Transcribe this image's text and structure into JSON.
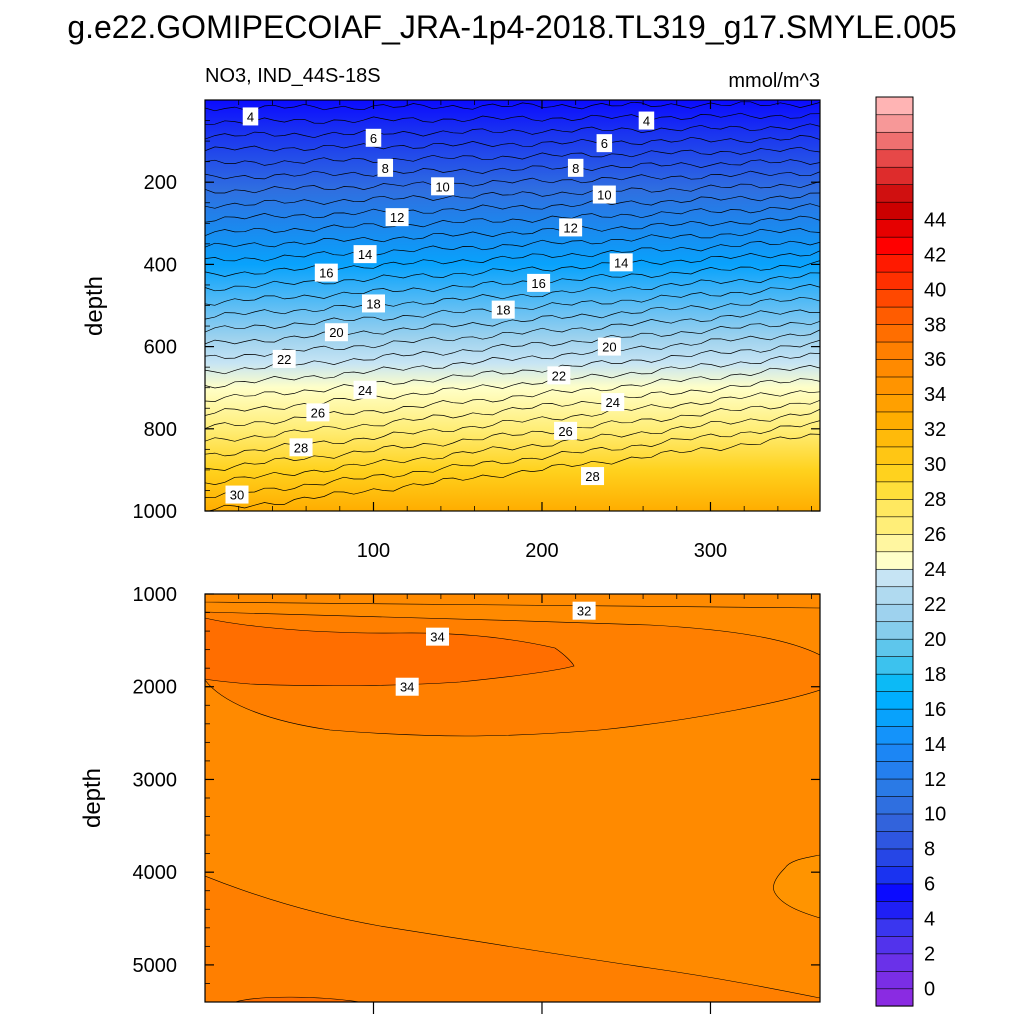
{
  "figure": {
    "main_title": "g.e22.GOMIPECOIAF_JRA-1p4-2018.TL319_g17.SMYLE.005"
  },
  "colors": {
    "frame": "#000000",
    "contour_line": "#000000"
  },
  "chart_data": [
    {
      "id": "upper-panel",
      "type": "contour",
      "title_left": "NO3, IND_44S-18S",
      "title_right": "mmol/m^3",
      "xlabel": "",
      "ylabel": "depth",
      "xlim": [
        0,
        365
      ],
      "ylim": [
        1000,
        0
      ],
      "xticks": [
        100,
        200,
        300
      ],
      "xticklabels": [
        "100",
        "200",
        "300"
      ],
      "yticks": [
        200,
        400,
        600,
        800,
        1000
      ],
      "yticklabels": [
        "200",
        "400",
        "600",
        "800",
        "1000"
      ],
      "contour_interval": 1,
      "contour_range": [
        3,
        32
      ],
      "contour_labels": [
        {
          "text": "4",
          "x": 27,
          "depth": 40
        },
        {
          "text": "4",
          "x": 262,
          "depth": 50
        },
        {
          "text": "6",
          "x": 100,
          "depth": 92
        },
        {
          "text": "6",
          "x": 237,
          "depth": 105
        },
        {
          "text": "8",
          "x": 107,
          "depth": 165
        },
        {
          "text": "8",
          "x": 220,
          "depth": 165
        },
        {
          "text": "10",
          "x": 141,
          "depth": 210
        },
        {
          "text": "10",
          "x": 237,
          "depth": 230
        },
        {
          "text": "12",
          "x": 114,
          "depth": 285
        },
        {
          "text": "12",
          "x": 217,
          "depth": 310
        },
        {
          "text": "14",
          "x": 95,
          "depth": 375
        },
        {
          "text": "14",
          "x": 247,
          "depth": 395
        },
        {
          "text": "16",
          "x": 72,
          "depth": 420
        },
        {
          "text": "16",
          "x": 198,
          "depth": 445
        },
        {
          "text": "18",
          "x": 100,
          "depth": 495
        },
        {
          "text": "18",
          "x": 177,
          "depth": 510
        },
        {
          "text": "20",
          "x": 78,
          "depth": 565
        },
        {
          "text": "20",
          "x": 240,
          "depth": 600
        },
        {
          "text": "22",
          "x": 47,
          "depth": 630
        },
        {
          "text": "22",
          "x": 210,
          "depth": 670
        },
        {
          "text": "24",
          "x": 95,
          "depth": 705
        },
        {
          "text": "24",
          "x": 242,
          "depth": 735
        },
        {
          "text": "26",
          "x": 67,
          "depth": 760
        },
        {
          "text": "26",
          "x": 214,
          "depth": 805
        },
        {
          "text": "28",
          "x": 57,
          "depth": 845
        },
        {
          "text": "28",
          "x": 230,
          "depth": 915
        },
        {
          "text": "30",
          "x": 19,
          "depth": 960
        }
      ]
    },
    {
      "id": "lower-panel",
      "type": "contour",
      "xlabel": "",
      "ylabel": "depth",
      "xlim": [
        0,
        365
      ],
      "ylim": [
        5400,
        1000
      ],
      "yticks": [
        1000,
        2000,
        3000,
        4000,
        5000
      ],
      "yticklabels": [
        "1000",
        "2000",
        "3000",
        "4000",
        "5000"
      ],
      "contour_labels": [
        {
          "text": "32",
          "x": 225,
          "depth": 1180
        },
        {
          "text": "34",
          "x": 138,
          "depth": 1460
        },
        {
          "text": "34",
          "x": 120,
          "depth": 2000
        }
      ]
    },
    {
      "id": "colorbar",
      "type": "colorbar",
      "levels": [
        0,
        1,
        2,
        3,
        4,
        5,
        6,
        7,
        8,
        9,
        10,
        11,
        12,
        13,
        14,
        15,
        16,
        17,
        18,
        19,
        20,
        21,
        22,
        23,
        24,
        25,
        26,
        27,
        28,
        29,
        30,
        31,
        32,
        33,
        34,
        35,
        36,
        37,
        38,
        39,
        40,
        41,
        42,
        43,
        44,
        45
      ],
      "labels": [
        "0",
        "2",
        "4",
        "6",
        "8",
        "10",
        "12",
        "14",
        "16",
        "18",
        "20",
        "22",
        "24",
        "26",
        "28",
        "30",
        "32",
        "34",
        "36",
        "38",
        "40",
        "42",
        "44"
      ],
      "colors": [
        "#8a2be2",
        "#7a2ee6",
        "#6a31e9",
        "#5233ec",
        "#3a36ef",
        "#1f1ff5",
        "#0b0bff",
        "#1a33f0",
        "#2646e6",
        "#2e56e0",
        "#3263dc",
        "#2f6fe0",
        "#2a7ae6",
        "#247fee",
        "#1c86f4",
        "#1493fa",
        "#08a2fc",
        "#00aeff",
        "#0cbaf6",
        "#3cc2ee",
        "#5ec6ec",
        "#86cdec",
        "#9ed2ee",
        "#b0daf0",
        "#c6e4f4",
        "#ffffc8",
        "#fff6a0",
        "#ffee78",
        "#ffe860",
        "#ffdf3a",
        "#ffd21e",
        "#ffc614",
        "#ffba0a",
        "#ffad00",
        "#ffa000",
        "#ff9400",
        "#ff8a00",
        "#ff7f00",
        "#ff6e00",
        "#ff5c00",
        "#ff4800",
        "#ff3000",
        "#ff1a00",
        "#ff0000",
        "#e60000",
        "#cc0000",
        "#d01010",
        "#de2c2c",
        "#e64848",
        "#ef7070",
        "#f79898",
        "#ffb4b4"
      ]
    }
  ]
}
